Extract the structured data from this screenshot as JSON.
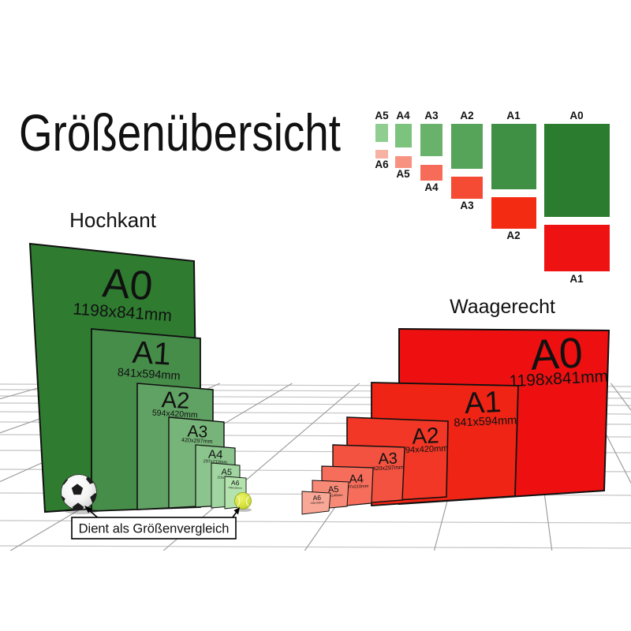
{
  "title": "Größenübersicht",
  "legend": {
    "green_labels": [
      "A5",
      "A4",
      "A3",
      "A2",
      "A1",
      "A0"
    ],
    "red_labels": [
      "A6",
      "A5",
      "A4",
      "A3",
      "A2",
      "A1"
    ],
    "green_colors": [
      "#8fce90",
      "#7cc37e",
      "#68b26b",
      "#56a35a",
      "#3f9044",
      "#2c7c30"
    ],
    "red_colors": [
      "#f8b2a4",
      "#f79180",
      "#f66c58",
      "#f54a34",
      "#f32b12",
      "#ee1212"
    ]
  },
  "portrait_group": {
    "label": "Hochkant",
    "sheets": [
      {
        "name": "A0",
        "size": "1198x841mm",
        "color": "#2f7c31"
      },
      {
        "name": "A1",
        "size": "841x594mm",
        "color": "#478d4a"
      },
      {
        "name": "A2",
        "size": "594x420mm",
        "color": "#60a263"
      },
      {
        "name": "A3",
        "size": "420x297mm",
        "color": "#77b479"
      },
      {
        "name": "A4",
        "size": "297x210mm",
        "color": "#8bc48d"
      },
      {
        "name": "A5",
        "size": "210x148mm",
        "color": "#a0d4a0"
      },
      {
        "name": "A6",
        "size": "148x105mm",
        "color": "#b4e3ae"
      }
    ]
  },
  "landscape_group": {
    "label": "Waagerecht",
    "sheets": [
      {
        "name": "A0",
        "size": "1198x841mm",
        "color": "#ee1010"
      },
      {
        "name": "A1",
        "size": "841x594mm",
        "color": "#f02415"
      },
      {
        "name": "A2",
        "size": "594x420mm",
        "color": "#f23726"
      },
      {
        "name": "A3",
        "size": "420x297mm",
        "color": "#f45240"
      },
      {
        "name": "A4",
        "size": "297x210mm",
        "color": "#f66d5b"
      },
      {
        "name": "A5",
        "size": "210x148mm",
        "color": "#f78a76"
      },
      {
        "name": "A6",
        "size": "148x105mm",
        "color": "#f9a797"
      }
    ]
  },
  "caption": {
    "text": "Dient als Größenvergleich"
  },
  "balls": {
    "soccer": {
      "base": "#ffffff",
      "patch": "#1c1c1c"
    },
    "tennis": {
      "base": "#d3e03a",
      "seam": "#f4f8cf"
    }
  },
  "grid": {
    "row_color": "#c3c3c3",
    "ray_color": "#9b9b9b"
  }
}
